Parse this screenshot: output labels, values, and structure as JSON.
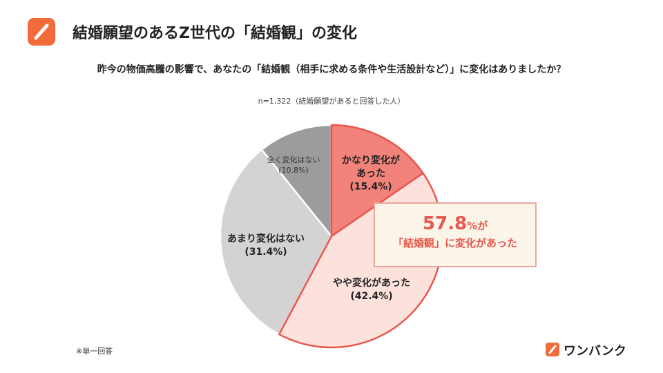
{
  "header": {
    "title": "結婚願望のあるZ世代の「結婚観」の変化",
    "logo": "ワンバンク"
  },
  "chart_data": {
    "type": "pie",
    "title": "昨今の物価高騰の影響で、あなたの「結婚観（相手に求める条件や生活設計など）」に変化はありましたか？",
    "subtitle": "n=1,322（結婚願望があると回答した人）",
    "categories": [
      "かなり変化が\nあった",
      "やや変化があった",
      "あまり変化はない",
      "全く変化はない"
    ],
    "values": [
      15.4,
      42.4,
      31.4,
      10.8
    ],
    "value_labels": [
      "(15.4%)",
      "(42.4%)",
      "(31.4%)",
      "(10.8%)"
    ],
    "colors": [
      "#f2837a",
      "#fde1dd",
      "#d3d3d3",
      "#9c9c9c"
    ],
    "edge_colors": [
      "#e8574d",
      "#e8574d",
      "#ffffff",
      "#ffffff"
    ],
    "callout": {
      "value": 57.8,
      "unit": "%が",
      "text": "「結婚観」に変化があった"
    },
    "note": "※単一回答"
  }
}
